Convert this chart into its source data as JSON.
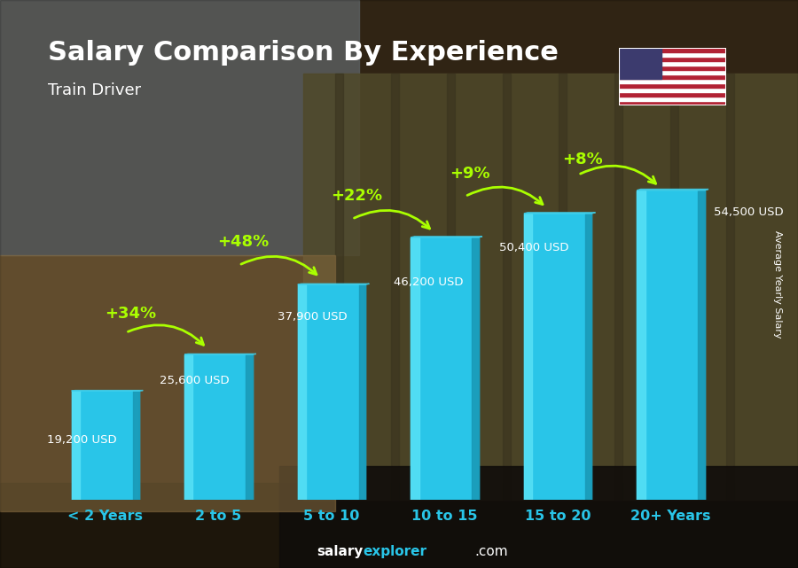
{
  "title": "Salary Comparison By Experience",
  "subtitle": "Train Driver",
  "categories": [
    "< 2 Years",
    "2 to 5",
    "5 to 10",
    "10 to 15",
    "15 to 20",
    "20+ Years"
  ],
  "values": [
    19200,
    25600,
    37900,
    46200,
    50400,
    54500
  ],
  "value_labels": [
    "19,200 USD",
    "25,600 USD",
    "37,900 USD",
    "46,200 USD",
    "50,400 USD",
    "54,500 USD"
  ],
  "pct_labels": [
    "+34%",
    "+48%",
    "+22%",
    "+9%",
    "+8%"
  ],
  "bar_color_main": "#29c5e8",
  "bar_color_light": "#55dff5",
  "bar_color_dark": "#1a9ab8",
  "bar_color_top": "#40d0ec",
  "bg_color": "#4a3820",
  "title_color": "#ffffff",
  "subtitle_color": "#ffffff",
  "xlabel_color": "#29c5e8",
  "value_label_color": "#ffffff",
  "pct_color": "#aaff00",
  "arrow_color": "#aaff00",
  "ylabel_text": "Average Yearly Salary",
  "footer_salary": "salary",
  "footer_explorer": "explorer",
  "footer_com": ".com",
  "ylim": [
    0,
    68000
  ],
  "bar_width": 0.6
}
